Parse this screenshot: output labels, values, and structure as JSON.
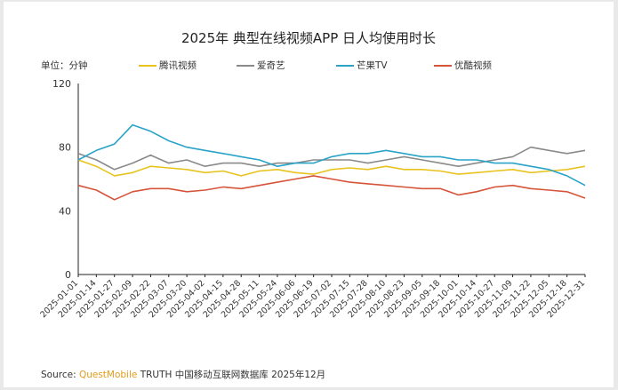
{
  "chart_data": {
    "type": "line",
    "title": "2025年 典型在线视频APP 日人均使用时长",
    "unit_label": "单位：分钟",
    "ylim": [
      0,
      120
    ],
    "yticks": [
      0,
      40,
      80,
      120
    ],
    "xlim": [
      "2025-01-01",
      "2025-12-31"
    ],
    "x_tick_labels": [
      "2025-01-01",
      "2025-01-14",
      "2025-01-27",
      "2025-02-09",
      "2025-02-22",
      "2025-03-07",
      "2025-03-20",
      "2025-04-02",
      "2025-04-15",
      "2025-04-28",
      "2025-05-11",
      "2025-05-24",
      "2025-06-06",
      "2025-06-19",
      "2025-07-02",
      "2025-07-15",
      "2025-07-28",
      "2025-08-10",
      "2025-08-23",
      "2025-09-05",
      "2025-09-18",
      "2025-10-01",
      "2025-10-14",
      "2025-10-27",
      "2025-11-09",
      "2025-11-22",
      "2025-12-05",
      "2025-12-18",
      "2025-12-31"
    ],
    "legend_position": "top",
    "grid": false,
    "series": [
      {
        "name": "腾讯视频",
        "color": "#e8c31e",
        "x": [
          "2025-01-01",
          "2025-01-14",
          "2025-01-27",
          "2025-02-09",
          "2025-02-22",
          "2025-03-07",
          "2025-03-20",
          "2025-04-02",
          "2025-04-15",
          "2025-04-28",
          "2025-05-11",
          "2025-05-24",
          "2025-06-06",
          "2025-06-19",
          "2025-07-02",
          "2025-07-15",
          "2025-07-28",
          "2025-08-10",
          "2025-08-23",
          "2025-09-05",
          "2025-09-18",
          "2025-10-01",
          "2025-10-14",
          "2025-10-27",
          "2025-11-09",
          "2025-11-22",
          "2025-12-05",
          "2025-12-18",
          "2025-12-31"
        ],
        "values": [
          72,
          68,
          62,
          64,
          68,
          67,
          66,
          64,
          65,
          62,
          65,
          66,
          64,
          63,
          66,
          67,
          66,
          68,
          66,
          66,
          65,
          63,
          64,
          65,
          66,
          64,
          65,
          66,
          68
        ]
      },
      {
        "name": "爱奇艺",
        "color": "#8a8a8a",
        "x": [
          "2025-01-01",
          "2025-01-14",
          "2025-01-27",
          "2025-02-09",
          "2025-02-22",
          "2025-03-07",
          "2025-03-20",
          "2025-04-02",
          "2025-04-15",
          "2025-04-28",
          "2025-05-11",
          "2025-05-24",
          "2025-06-06",
          "2025-06-19",
          "2025-07-02",
          "2025-07-15",
          "2025-07-28",
          "2025-08-10",
          "2025-08-23",
          "2025-09-05",
          "2025-09-18",
          "2025-10-01",
          "2025-10-14",
          "2025-10-27",
          "2025-11-09",
          "2025-11-22",
          "2025-12-05",
          "2025-12-18",
          "2025-12-31"
        ],
        "values": [
          76,
          72,
          66,
          70,
          75,
          70,
          72,
          68,
          70,
          70,
          68,
          70,
          70,
          72,
          72,
          72,
          70,
          72,
          74,
          72,
          70,
          68,
          70,
          72,
          74,
          80,
          78,
          76,
          78
        ]
      },
      {
        "name": "芒果TV",
        "color": "#2aa3c7",
        "x": [
          "2025-01-01",
          "2025-01-14",
          "2025-01-27",
          "2025-02-09",
          "2025-02-22",
          "2025-03-07",
          "2025-03-20",
          "2025-04-02",
          "2025-04-15",
          "2025-04-28",
          "2025-05-11",
          "2025-05-24",
          "2025-06-06",
          "2025-06-19",
          "2025-07-02",
          "2025-07-15",
          "2025-07-28",
          "2025-08-10",
          "2025-08-23",
          "2025-09-05",
          "2025-09-18",
          "2025-10-01",
          "2025-10-14",
          "2025-10-27",
          "2025-11-09",
          "2025-11-22",
          "2025-12-05",
          "2025-12-18",
          "2025-12-31"
        ],
        "values": [
          72,
          78,
          82,
          94,
          90,
          84,
          80,
          78,
          76,
          74,
          72,
          68,
          70,
          70,
          74,
          76,
          76,
          78,
          76,
          74,
          74,
          72,
          72,
          70,
          70,
          68,
          66,
          62,
          56
        ]
      },
      {
        "name": "优酷视频",
        "color": "#d6543a",
        "x": [
          "2025-01-01",
          "2025-01-14",
          "2025-01-27",
          "2025-02-09",
          "2025-02-22",
          "2025-03-07",
          "2025-03-20",
          "2025-04-02",
          "2025-04-15",
          "2025-04-28",
          "2025-05-11",
          "2025-05-24",
          "2025-06-06",
          "2025-06-19",
          "2025-07-02",
          "2025-07-15",
          "2025-07-28",
          "2025-08-10",
          "2025-08-23",
          "2025-09-05",
          "2025-09-18",
          "2025-10-01",
          "2025-10-14",
          "2025-10-27",
          "2025-11-09",
          "2025-11-22",
          "2025-12-05",
          "2025-12-18",
          "2025-12-31"
        ],
        "values": [
          56,
          53,
          47,
          52,
          54,
          54,
          52,
          53,
          55,
          54,
          56,
          58,
          60,
          62,
          60,
          58,
          57,
          56,
          55,
          54,
          54,
          50,
          52,
          55,
          56,
          54,
          53,
          52,
          48
        ]
      }
    ]
  },
  "footer": {
    "source_label": "Source: ",
    "source_brand": "QuestMobile",
    "source_rest": " TRUTH 中国移动互联网数据库 2025年12月"
  }
}
